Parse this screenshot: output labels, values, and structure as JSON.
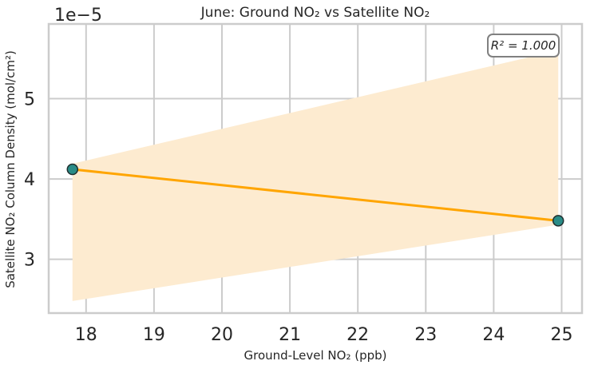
{
  "chart_data": {
    "type": "scatter",
    "title": "June: Ground NO₂ vs Satellite NO₂",
    "xlabel": "Ground-Level NO₂ (ppb)",
    "ylabel": "Satellite NO₂ Column Density (mol/cm²)",
    "y_offset_label": "1e−5",
    "xlim": [
      17.45,
      25.3
    ],
    "ylim": [
      2.33,
      5.93
    ],
    "x_ticks": [
      18,
      19,
      20,
      21,
      22,
      23,
      24,
      25
    ],
    "y_ticks": [
      3,
      4,
      5
    ],
    "grid": true,
    "points": [
      {
        "x": 17.8,
        "y": 4.12
      },
      {
        "x": 24.95,
        "y": 3.48
      }
    ],
    "fit_line": {
      "x": [
        17.8,
        24.95
      ],
      "y": [
        4.12,
        3.48
      ]
    },
    "confidence_band": {
      "x": [
        17.8,
        24.95
      ],
      "upper": [
        4.19,
        5.6
      ],
      "lower": [
        2.48,
        3.43
      ]
    },
    "annotation": "R² = 1.000",
    "colors": {
      "points": "#2a8c87",
      "point_edge": "#1f2f2f",
      "fit_line": "#ffa500",
      "band": "#fdebd0",
      "grid": "#cccccc",
      "axes": "#cccccc"
    }
  }
}
